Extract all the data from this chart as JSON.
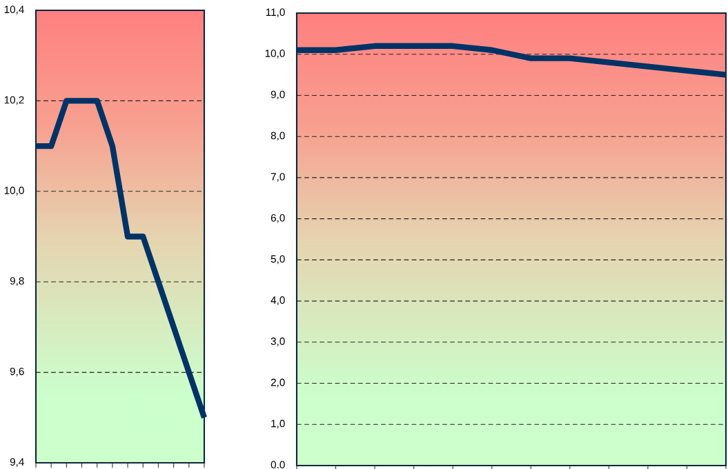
{
  "chart_data": [
    {
      "type": "line",
      "categories": [
        null,
        null,
        null,
        null,
        null,
        null,
        null,
        null,
        null,
        null,
        null,
        null
      ],
      "series": [
        {
          "color": "#003366",
          "values": [
            10.1,
            10.1,
            10.2,
            10.2,
            10.2,
            10.1,
            9.9,
            9.9,
            9.8,
            9.7,
            9.6,
            9.5
          ]
        }
      ],
      "ylim": [
        9.4,
        10.4
      ],
      "yticks": [
        {
          "value": 9.4,
          "label": "9,4"
        },
        {
          "value": 9.6,
          "label": "9,6"
        },
        {
          "value": 9.8,
          "label": "9,8"
        },
        {
          "value": 10.0,
          "label": "10,0"
        },
        {
          "value": 10.2,
          "label": "10,2"
        },
        {
          "value": 10.4,
          "label": "10,4"
        }
      ],
      "grid": "y",
      "tick_labels": "y",
      "marker": "none",
      "line_style": "solid"
    },
    {
      "type": "line",
      "categories": [
        null,
        null,
        null,
        null,
        null,
        null,
        null,
        null,
        null,
        null,
        null,
        null
      ],
      "series": [
        {
          "color": "#003366",
          "values": [
            10.1,
            10.1,
            10.2,
            10.2,
            10.2,
            10.1,
            9.9,
            9.9,
            9.8,
            9.7,
            9.6,
            9.5
          ]
        }
      ],
      "ylim": [
        0,
        11
      ],
      "yticks": [
        {
          "value": 0,
          "label": "0.0"
        },
        {
          "value": 1,
          "label": "1,0"
        },
        {
          "value": 2,
          "label": "2,0"
        },
        {
          "value": 3,
          "label": "3,0"
        },
        {
          "value": 4,
          "label": "4,0"
        },
        {
          "value": 5,
          "label": "5,0"
        },
        {
          "value": 6,
          "label": "6,0"
        },
        {
          "value": 7,
          "label": "7,0"
        },
        {
          "value": 8,
          "label": "8,0"
        },
        {
          "value": 9,
          "label": "9,0"
        },
        {
          "value": 10,
          "label": "10,0"
        },
        {
          "value": 11,
          "label": "11,0"
        }
      ],
      "grid": "y",
      "tick_labels": "y",
      "marker": "none",
      "line_style": "solid"
    }
  ]
}
